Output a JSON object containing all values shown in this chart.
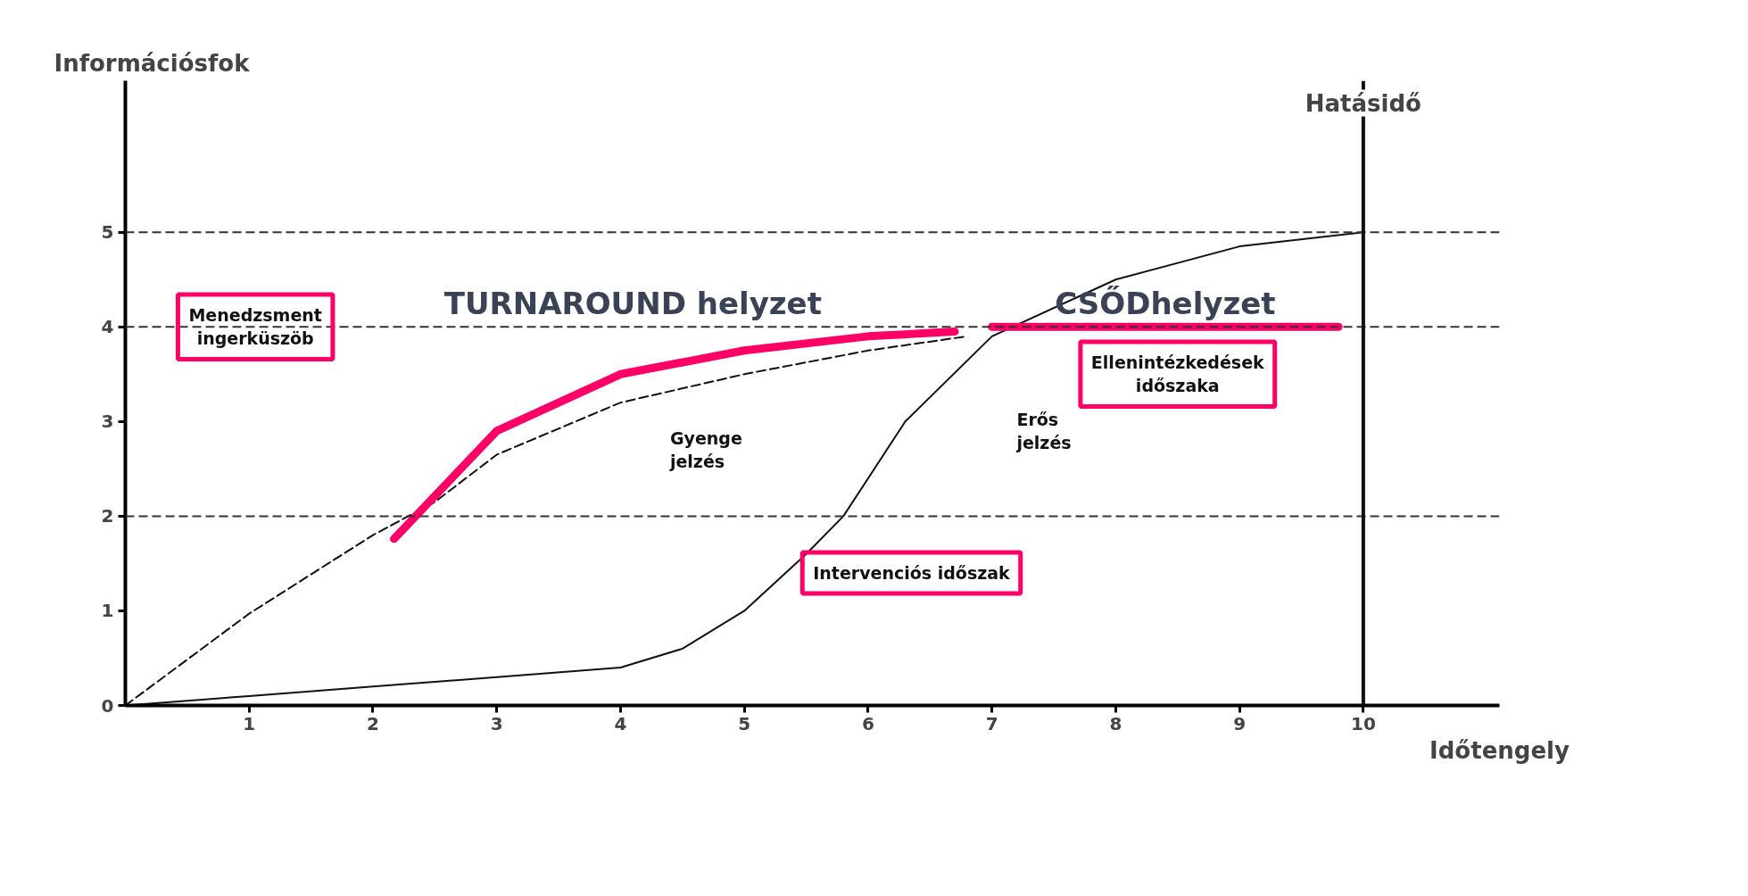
{
  "chart_data": {
    "type": "line",
    "xlabel": "Időtengely",
    "ylabel": "Információsfok",
    "series": [
      {
        "color": "#111111",
        "line_style": "dashed",
        "x": [
          0,
          1,
          2,
          2.5,
          3,
          4,
          5,
          6,
          6.8
        ],
        "values": [
          0,
          0.97,
          1.8,
          2.15,
          2.65,
          3.2,
          3.5,
          3.75,
          3.9
        ]
      },
      {
        "color": "#111111",
        "line_style": "solid",
        "x": [
          0,
          1,
          2,
          3,
          4,
          4.5,
          5,
          5.5,
          5.8,
          6,
          6.3,
          7,
          8,
          9,
          10
        ],
        "values": [
          0,
          0.1,
          0.2,
          0.3,
          0.4,
          0.6,
          1.0,
          1.6,
          2.0,
          2.4,
          3.0,
          3.9,
          4.5,
          4.85,
          5
        ]
      },
      {
        "color": "#ff0066",
        "line_style": "solid",
        "x": [
          2.17,
          3,
          4,
          5,
          6,
          6.7,
          6.85,
          7.0,
          8,
          9,
          9.8
        ],
        "values": [
          1.76,
          2.9,
          3.5,
          3.75,
          3.9,
          3.95,
          null,
          4,
          4,
          4,
          4
        ]
      }
    ],
    "xlim": [
      0,
      11.1
    ],
    "ylim": [
      0,
      6.6
    ],
    "xticks": [
      1,
      2,
      3,
      4,
      5,
      6,
      7,
      8,
      9,
      10
    ],
    "yticks": [
      0,
      1,
      2,
      3,
      4,
      5
    ],
    "grid": false,
    "marker": "none",
    "ref_lines": [
      {
        "axis": "y",
        "value": 5,
        "label": null,
        "color": "#333333",
        "line_style": "dashed"
      },
      {
        "axis": "y",
        "value": 4,
        "label": null,
        "color": "#333333",
        "line_style": "dashed"
      },
      {
        "axis": "y",
        "value": 2,
        "label": null,
        "color": "#333333",
        "line_style": "dashed"
      },
      {
        "axis": "x",
        "value": 10,
        "label": "Hatásidő",
        "color": "#111111",
        "line_style": "solid"
      }
    ],
    "annotations": [
      {
        "text": "Menedzsment\ningerküszöb",
        "x": 1.05,
        "y": 4
      },
      "TURNAROUND helyzet",
      "CSŐDhelyzet",
      "Ellenintézkedések\nidőszaka",
      "Gyenge\njelzés",
      "Erős\njelzés",
      "Intervenciós időszak"
    ]
  }
}
